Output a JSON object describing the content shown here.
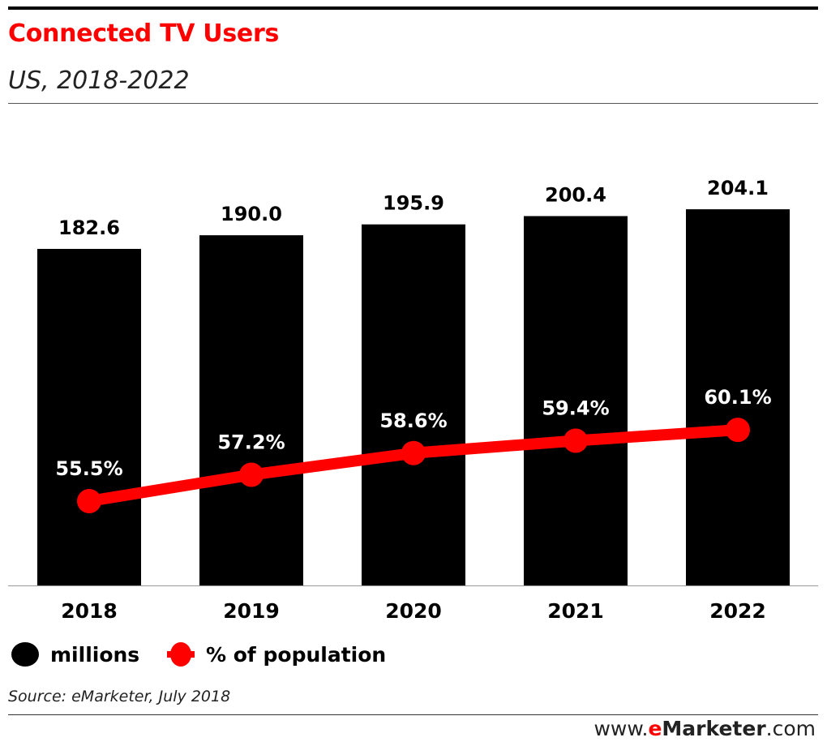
{
  "header": {
    "title": "Connected TV Users",
    "subtitle": "US, 2018-2022"
  },
  "chart_data": {
    "type": "bar",
    "categories": [
      "2018",
      "2019",
      "2020",
      "2021",
      "2022"
    ],
    "series": [
      {
        "name": "millions",
        "type": "bar",
        "color": "#000000",
        "values": [
          182.6,
          190.0,
          195.9,
          200.4,
          204.1
        ],
        "labels": [
          "182.6",
          "190.0",
          "195.9",
          "200.4",
          "204.1"
        ]
      },
      {
        "name": "% of population",
        "type": "line",
        "color": "#ff0000",
        "values": [
          55.5,
          57.2,
          58.6,
          59.4,
          60.1
        ],
        "labels": [
          "55.5%",
          "57.2%",
          "58.6%",
          "59.4%",
          "60.1%"
        ]
      }
    ],
    "title": "Connected TV Users",
    "subtitle": "US, 2018-2022",
    "grid": false,
    "legend_position": "bottom-left"
  },
  "legend": {
    "items": [
      {
        "label": "millions",
        "color": "#000000"
      },
      {
        "label": "% of population",
        "color": "#ff0000"
      }
    ]
  },
  "footer": {
    "source": "Source: eMarketer, July 2018",
    "brand_prefix": "www.",
    "brand_e": "e",
    "brand_name": "Marketer",
    "brand_suffix": ".com"
  }
}
